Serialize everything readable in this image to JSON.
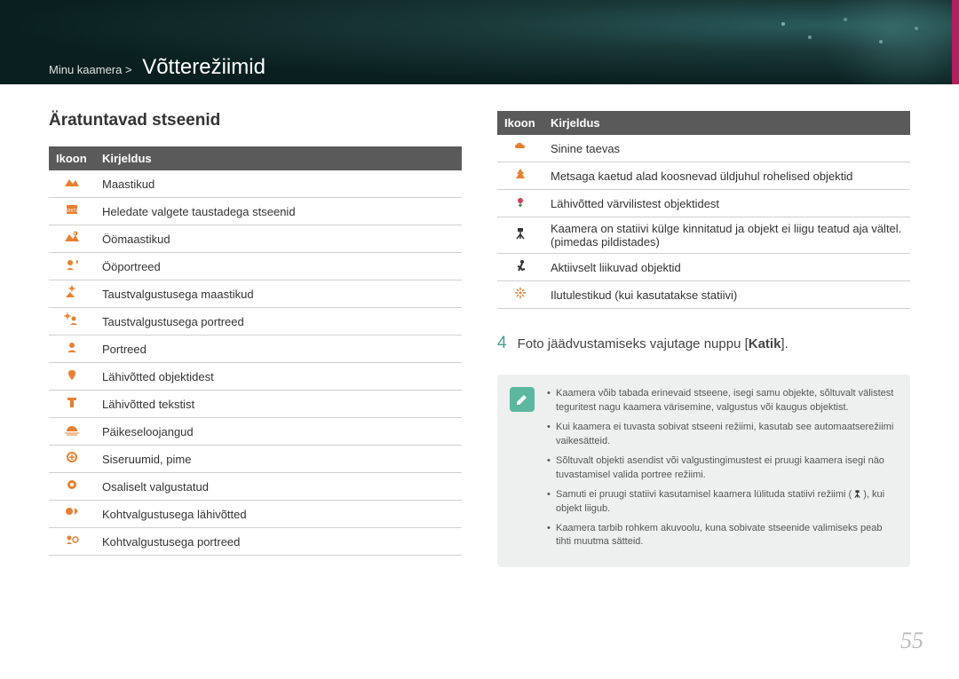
{
  "header": {
    "breadcrumb_prefix": "Minu kaamera >",
    "page_title": "Võtterežiimid"
  },
  "left": {
    "section_title": "Äratuntavad stseenid",
    "table_headers": {
      "icon": "Ikoon",
      "desc": "Kirjeldus"
    },
    "rows": [
      {
        "icon": "landscape",
        "desc": "Maastikud"
      },
      {
        "icon": "white",
        "desc": "Heledate valgete taustadega stseenid"
      },
      {
        "icon": "night-landscape",
        "desc": "Öömaastikud"
      },
      {
        "icon": "night-portrait",
        "desc": "Ööportreed"
      },
      {
        "icon": "backlight-landscape",
        "desc": "Taustvalgustusega maastikud"
      },
      {
        "icon": "backlight-portrait",
        "desc": "Taustvalgustusega portreed"
      },
      {
        "icon": "portrait",
        "desc": "Portreed"
      },
      {
        "icon": "macro",
        "desc": "Lähivõtted objektidest"
      },
      {
        "icon": "macro-text",
        "desc": "Lähivõtted tekstist"
      },
      {
        "icon": "sunset",
        "desc": "Päikeseloojangud"
      },
      {
        "icon": "indoor",
        "desc": "Siseruumid, pime"
      },
      {
        "icon": "partial-light",
        "desc": "Osaliselt valgustatud"
      },
      {
        "icon": "spotlight-macro",
        "desc": "Kohtvalgustusega lähivõtted"
      },
      {
        "icon": "spotlight-portrait",
        "desc": "Kohtvalgustusega portreed"
      }
    ]
  },
  "right": {
    "table_headers": {
      "icon": "Ikoon",
      "desc": "Kirjeldus"
    },
    "rows": [
      {
        "icon": "bluesky",
        "desc": "Sinine taevas"
      },
      {
        "icon": "forest",
        "desc": "Metsaga kaetud alad koosnevad üldjuhul rohelised objektid"
      },
      {
        "icon": "macro-color",
        "desc": "Lähivõtted värvilistest objektidest"
      },
      {
        "icon": "tripod",
        "desc": "Kaamera on statiivi külge kinnitatud ja objekt ei liigu teatud aja vältel. (pimedas pildistades)",
        "dark": true
      },
      {
        "icon": "action",
        "desc": "Aktiivselt liikuvad objektid",
        "dark": true
      },
      {
        "icon": "fireworks",
        "desc": "Ilutulestikud (kui kasutatakse statiivi)"
      }
    ],
    "step": {
      "num": "4",
      "text_a": "Foto jäädvustamiseks vajutage nuppu [",
      "text_bold": "Katik",
      "text_b": "]."
    },
    "notes": [
      "Kaamera võib tabada erinevaid stseene, isegi samu objekte, sõltuvalt välistest teguritest nagu kaamera värisemine, valgustus või kaugus objektist.",
      "Kui kaamera ei tuvasta sobivat stseeni režiimi, kasutab see automaatserežiimi vaikesätteid.",
      "Sõltuvalt objekti asendist või valgustingimustest ei pruugi kaamera isegi näo tuvastamisel valida portree režiimi.",
      "Samuti ei pruugi statiivi kasutamisel kaamera lülituda statiivi režiimi (🔧), kui objekt liigub.",
      "Kaamera tarbib rohkem akuvoolu, kuna sobivate stseenide valimiseks peab tihti muutma sätteid."
    ]
  },
  "page_number": "55",
  "colors": {
    "icon_orange": "#e88030",
    "icon_dark": "#333333",
    "teal": "#4aa090",
    "note_bg": "#eef0ef",
    "note_icon_bg": "#5bb89f"
  }
}
